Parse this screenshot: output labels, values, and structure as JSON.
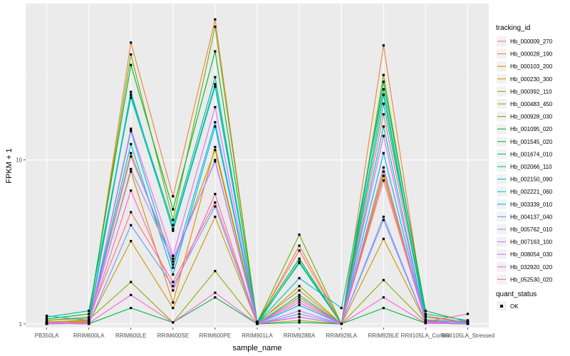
{
  "chart_data": {
    "type": "line",
    "xlabel": "sample_name",
    "ylabel": "FPKM + 1",
    "y_scale": "log10",
    "ylim": [
      0.95,
      90
    ],
    "y_ticks": [
      1,
      10
    ],
    "y_tick_labels": [
      "1",
      "10"
    ],
    "grid": true,
    "legend_position": "right",
    "categories": [
      "PB350LA",
      "RRIM600LA",
      "RRIM600LE",
      "RRIM600SE",
      "RRIM600PE",
      "RRIM901LA",
      "RRIM928BA",
      "RRIM928LA",
      "RRIM928LE",
      "RRII105LA_Control",
      "RRII105LA_Stressed"
    ],
    "legend_title": "tracking_id",
    "shape_legend_title": "quant_status",
    "shape_legend_label": "OK",
    "series": [
      {
        "name": "Hb_000009_270",
        "color": "#F8766D",
        "values": [
          1.05,
          1.08,
          4.8,
          1.8,
          5.5,
          1.03,
          2.8,
          1.0,
          19.0,
          1.12,
          1.02
        ]
      },
      {
        "name": "Hb_000028_190",
        "color": "#EC823C",
        "values": [
          1.02,
          1.05,
          52.0,
          6.0,
          72.0,
          1.01,
          3.0,
          1.0,
          50.0,
          1.05,
          1.03
        ]
      },
      {
        "name": "Hb_000103_200",
        "color": "#DE8C00",
        "values": [
          1.03,
          1.04,
          8.5,
          1.35,
          12.0,
          1.02,
          1.6,
          1.0,
          8.0,
          1.05,
          1.0
        ]
      },
      {
        "name": "Hb_000230_300",
        "color": "#C99800",
        "values": [
          1.0,
          1.02,
          3.2,
          1.25,
          4.5,
          1.0,
          1.45,
          1.0,
          3.3,
          1.02,
          1.0
        ]
      },
      {
        "name": "Hb_000392_110",
        "color": "#B0A100",
        "values": [
          1.01,
          1.03,
          11.0,
          2.3,
          11.5,
          1.0,
          1.7,
          1.0,
          8.5,
          1.03,
          1.01
        ]
      },
      {
        "name": "Hb_000483_450",
        "color": "#92AA00",
        "values": [
          1.02,
          1.06,
          1.8,
          1.02,
          2.1,
          1.0,
          1.05,
          1.0,
          1.85,
          1.02,
          1.0
        ]
      },
      {
        "name": "Hb_000928_030",
        "color": "#6BB100",
        "values": [
          1.05,
          1.1,
          44.0,
          4.3,
          65.0,
          1.02,
          3.5,
          1.0,
          33.0,
          1.1,
          1.02
        ]
      },
      {
        "name": "Hb_001095_020",
        "color": "#00B52B",
        "values": [
          1.07,
          1.15,
          38.0,
          5.0,
          46.0,
          1.03,
          2.5,
          1.0,
          30.0,
          1.2,
          1.03
        ]
      },
      {
        "name": "Hb_001545_020",
        "color": "#00B94C",
        "values": [
          1.02,
          1.0,
          1.25,
          1.02,
          1.45,
          1.0,
          1.02,
          1.0,
          1.25,
          1.01,
          1.0
        ]
      },
      {
        "name": "Hb_001674_010",
        "color": "#00BC8B",
        "values": [
          1.0,
          1.02,
          25.0,
          4.0,
          32.0,
          1.0,
          2.4,
          1.0,
          25.0,
          1.04,
          1.0
        ]
      },
      {
        "name": "Hb_002066_110",
        "color": "#00BFA5",
        "values": [
          1.1,
          1.2,
          24.0,
          3.8,
          29.0,
          1.02,
          2.35,
          1.0,
          22.0,
          1.15,
          1.05
        ]
      },
      {
        "name": "Hb_002150_090",
        "color": "#00BFC4",
        "values": [
          1.12,
          1.05,
          26.0,
          3.7,
          28.0,
          1.01,
          1.9,
          1.25,
          27.0,
          1.06,
          1.02
        ]
      },
      {
        "name": "Hb_002221_060",
        "color": "#00BBDC",
        "values": [
          1.01,
          1.0,
          15.0,
          2.2,
          17.0,
          1.0,
          1.5,
          1.0,
          16.0,
          1.03,
          1.01
        ]
      },
      {
        "name": "Hb_003339_010",
        "color": "#00B2F0",
        "values": [
          1.0,
          1.01,
          12.5,
          2.0,
          16.0,
          1.0,
          1.3,
          1.0,
          11.0,
          1.02,
          1.0
        ]
      },
      {
        "name": "Hb_004137_040",
        "color": "#619CFF",
        "values": [
          1.01,
          1.0,
          4.0,
          1.7,
          5.2,
          1.0,
          1.15,
          1.0,
          4.5,
          1.01,
          1.0
        ]
      },
      {
        "name": "Hb_005762_010",
        "color": "#9590FF",
        "values": [
          1.0,
          1.02,
          8.8,
          2.4,
          10.0,
          1.01,
          1.1,
          1.0,
          4.3,
          1.01,
          1.0
        ]
      },
      {
        "name": "Hb_007163_100",
        "color": "#C77CFF",
        "values": [
          1.02,
          1.01,
          10.5,
          2.5,
          9.8,
          1.0,
          1.2,
          1.0,
          9.0,
          1.02,
          1.01
        ]
      },
      {
        "name": "Hb_008054_030",
        "color": "#E76BF3",
        "values": [
          1.01,
          1.0,
          15.5,
          2.6,
          21.0,
          1.0,
          1.35,
          1.0,
          14.0,
          1.02,
          1.05
        ]
      },
      {
        "name": "Hb_032920_020",
        "color": "#FA62DB",
        "values": [
          1.0,
          1.01,
          1.5,
          1.02,
          1.55,
          1.0,
          1.1,
          1.0,
          1.45,
          1.01,
          1.0
        ]
      },
      {
        "name": "Hb_052530_020",
        "color": "#FF62BC",
        "values": [
          1.0,
          1.02,
          6.5,
          1.6,
          6.2,
          1.0,
          1.4,
          1.0,
          7.5,
          1.03,
          1.15
        ]
      }
    ]
  }
}
